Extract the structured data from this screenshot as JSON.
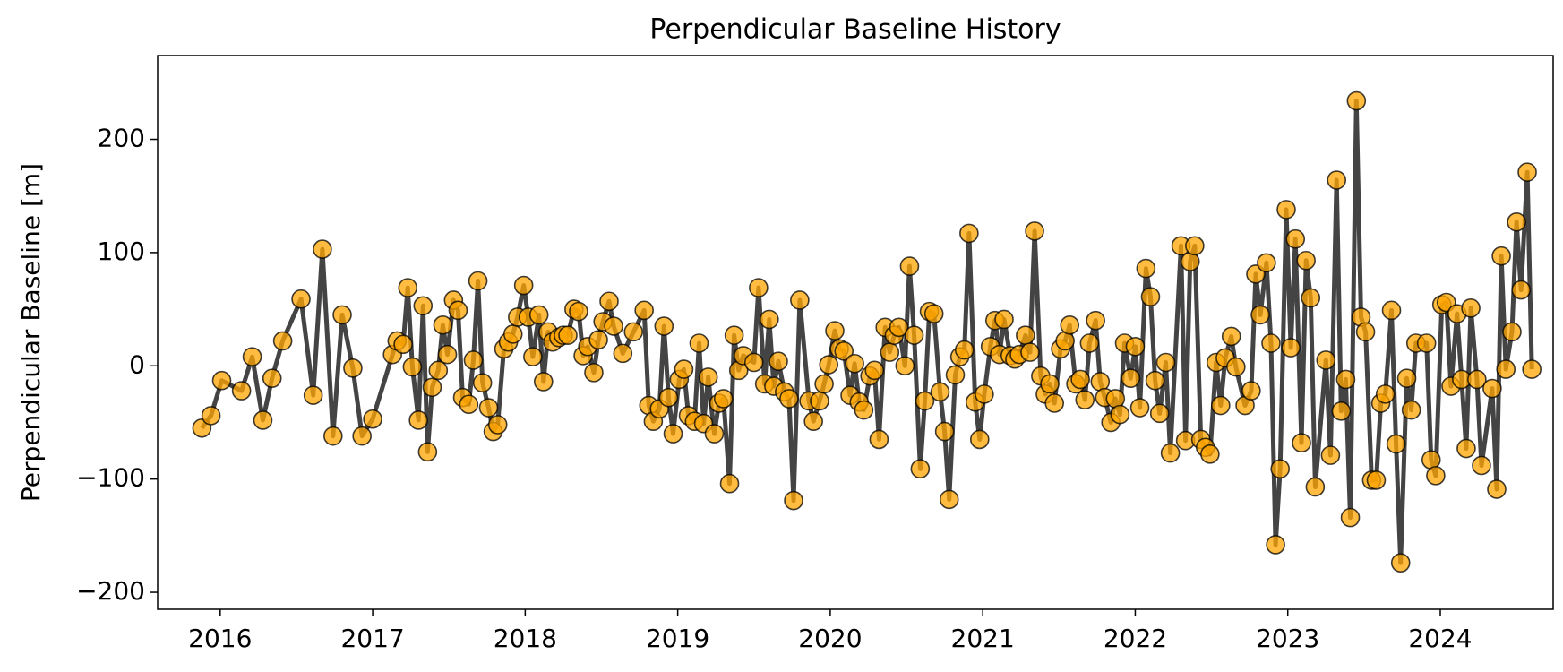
{
  "chart_data": {
    "type": "line",
    "title": "Perpendicular Baseline History",
    "ylabel": "Perpendicular Baseline [m]",
    "line_color": "#444444",
    "marker_color": "#ffa500",
    "marker_edge_color": "#000000",
    "xlim": [
      2015.59,
      2024.74
    ],
    "xticks": [
      2016,
      2017,
      2018,
      2019,
      2020,
      2021,
      2022,
      2023,
      2024
    ],
    "ylim": [
      -215,
      274
    ],
    "yticks": [
      {
        "value": -200,
        "label": "−200"
      },
      {
        "value": -100,
        "label": "−100"
      },
      0,
      100,
      200
    ],
    "grid": false,
    "series": [
      {
        "name": "Perpendicular Baseline",
        "x": [
          2015.88,
          2015.94,
          2016.01,
          2016.14,
          2016.21,
          2016.28,
          2016.34,
          2016.41,
          2016.53,
          2016.61,
          2016.67,
          2016.74,
          2016.8,
          2016.87,
          2016.93,
          2017.0,
          2017.13,
          2017.16,
          2017.2,
          2017.23,
          2017.26,
          2017.3,
          2017.33,
          2017.36,
          2017.39,
          2017.43,
          2017.46,
          2017.49,
          2017.53,
          2017.56,
          2017.59,
          2017.63,
          2017.66,
          2017.69,
          2017.72,
          2017.76,
          2017.79,
          2017.82,
          2017.86,
          2017.89,
          2017.92,
          2017.95,
          2017.99,
          2018.02,
          2018.05,
          2018.09,
          2018.12,
          2018.15,
          2018.18,
          2018.22,
          2018.25,
          2018.28,
          2018.32,
          2018.35,
          2018.38,
          2018.41,
          2018.45,
          2018.48,
          2018.51,
          2018.55,
          2018.58,
          2018.64,
          2018.71,
          2018.78,
          2018.81,
          2018.84,
          2018.88,
          2018.91,
          2018.94,
          2018.97,
          2019.01,
          2019.04,
          2019.07,
          2019.11,
          2019.14,
          2019.17,
          2019.2,
          2019.24,
          2019.27,
          2019.3,
          2019.34,
          2019.37,
          2019.4,
          2019.43,
          2019.5,
          2019.53,
          2019.57,
          2019.6,
          2019.63,
          2019.66,
          2019.7,
          2019.73,
          2019.76,
          2019.8,
          2019.86,
          2019.89,
          2019.93,
          2019.96,
          2019.99,
          2020.03,
          2020.06,
          2020.09,
          2020.13,
          2020.16,
          2020.19,
          2020.22,
          2020.26,
          2020.29,
          2020.32,
          2020.36,
          2020.39,
          2020.42,
          2020.45,
          2020.49,
          2020.52,
          2020.55,
          2020.59,
          2020.62,
          2020.65,
          2020.68,
          2020.72,
          2020.75,
          2020.78,
          2020.82,
          2020.85,
          2020.88,
          2020.91,
          2020.95,
          2020.98,
          2021.01,
          2021.05,
          2021.08,
          2021.11,
          2021.14,
          2021.18,
          2021.21,
          2021.24,
          2021.28,
          2021.31,
          2021.34,
          2021.38,
          2021.41,
          2021.44,
          2021.47,
          2021.51,
          2021.54,
          2021.57,
          2021.61,
          2021.64,
          2021.67,
          2021.7,
          2021.74,
          2021.77,
          2021.8,
          2021.84,
          2021.87,
          2021.9,
          2021.93,
          2021.97,
          2022.0,
          2022.03,
          2022.07,
          2022.1,
          2022.13,
          2022.16,
          2022.2,
          2022.23,
          2022.3,
          2022.33,
          2022.36,
          2022.39,
          2022.43,
          2022.46,
          2022.49,
          2022.53,
          2022.56,
          2022.59,
          2022.63,
          2022.66,
          2022.72,
          2022.76,
          2022.79,
          2022.82,
          2022.86,
          2022.89,
          2022.92,
          2022.95,
          2022.99,
          2023.02,
          2023.05,
          2023.09,
          2023.12,
          2023.15,
          2023.18,
          2023.25,
          2023.28,
          2023.32,
          2023.35,
          2023.38,
          2023.41,
          2023.45,
          2023.48,
          2023.51,
          2023.55,
          2023.58,
          2023.61,
          2023.64,
          2023.68,
          2023.71,
          2023.74,
          2023.78,
          2023.81,
          2023.84,
          2023.91,
          2023.94,
          2023.97,
          2024.01,
          2024.04,
          2024.07,
          2024.11,
          2024.14,
          2024.17,
          2024.2,
          2024.24,
          2024.27,
          2024.34,
          2024.37,
          2024.4,
          2024.43,
          2024.47,
          2024.5,
          2024.53,
          2024.57,
          2024.6
        ],
        "values": [
          -55,
          -44,
          -13,
          -22,
          8,
          -48,
          -11,
          22,
          59,
          -26,
          103,
          -62,
          45,
          -2,
          -62,
          -47,
          10,
          22,
          19,
          69,
          -1,
          -48,
          53,
          -76,
          -19,
          -4,
          36,
          10,
          58,
          49,
          -28,
          -34,
          5,
          75,
          -15,
          -37,
          -58,
          -52,
          15,
          21,
          28,
          43,
          71,
          43,
          8,
          45,
          -14,
          30,
          21,
          25,
          27,
          27,
          50,
          48,
          9,
          17,
          -6,
          23,
          39,
          57,
          35,
          11,
          30,
          49,
          -35,
          -49,
          -38,
          35,
          -28,
          -60,
          -12,
          -3,
          -44,
          -49,
          20,
          -51,
          -10,
          -60,
          -33,
          -29,
          -104,
          27,
          -4,
          9,
          3,
          69,
          -16,
          41,
          -18,
          4,
          -23,
          -29,
          -119,
          58,
          -31,
          -49,
          -31,
          -16,
          1,
          31,
          15,
          13,
          -26,
          2,
          -32,
          -39,
          -9,
          -4,
          -65,
          34,
          12,
          27,
          34,
          0,
          88,
          27,
          -91,
          -31,
          48,
          46,
          -23,
          -58,
          -118,
          -8,
          8,
          14,
          117,
          -32,
          -65,
          -25,
          17,
          40,
          10,
          41,
          9,
          6,
          10,
          27,
          12,
          119,
          -9,
          -25,
          -16,
          -33,
          15,
          22,
          36,
          -16,
          -12,
          -30,
          20,
          40,
          -14,
          -28,
          -50,
          -29,
          -43,
          20,
          -11,
          17,
          -37,
          86,
          61,
          -13,
          -42,
          3,
          -77,
          106,
          -66,
          92,
          106,
          -65,
          -72,
          -78,
          3,
          -35,
          7,
          26,
          -1,
          -35,
          -22,
          81,
          45,
          91,
          20,
          -158,
          -91,
          138,
          16,
          112,
          -68,
          93,
          60,
          -107,
          5,
          -79,
          164,
          -40,
          -12,
          -134,
          234,
          43,
          30,
          -101,
          -101,
          -33,
          -25,
          49,
          -69,
          -174,
          -11,
          -39,
          20,
          20,
          -83,
          -97,
          54,
          56,
          -18,
          46,
          -12,
          -73,
          51,
          -12,
          -88,
          -20,
          -109,
          97,
          -3,
          30,
          127,
          67,
          171,
          -3
        ]
      }
    ]
  }
}
